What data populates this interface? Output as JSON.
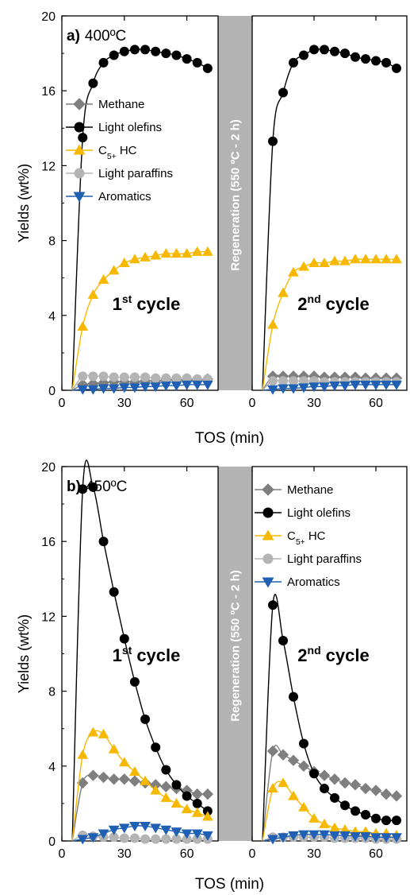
{
  "chart_data": [
    {
      "type": "line",
      "panel_label": "a)",
      "title": "400ºC",
      "xlabel": "TOS (min)",
      "ylabel": "Yields (wt%)",
      "xlim": [
        0,
        75
      ],
      "ylim": [
        0,
        20
      ],
      "x_ticks": [
        "0",
        "30",
        "60"
      ],
      "y_ticks": [
        "0",
        "4",
        "8",
        "12",
        "16",
        "20"
      ],
      "legend_position": "left panel, upper-middle",
      "regeneration_label": "Regeneration (550 ºC - 2 h)",
      "cycles": [
        {
          "label": "1st cycle",
          "series": [
            {
              "name": "Methane",
              "color": "#7f7f7f",
              "marker": "diamond",
              "x": [
                10,
                15,
                20,
                25,
                30,
                35,
                40,
                45,
                50,
                55,
                60,
                65,
                70
              ],
              "values": [
                0.3,
                0.35,
                0.4,
                0.45,
                0.45,
                0.45,
                0.5,
                0.5,
                0.55,
                0.55,
                0.55,
                0.55,
                0.6
              ]
            },
            {
              "name": "Light olefins",
              "color": "#000000",
              "marker": "circle",
              "x": [
                10,
                15,
                20,
                25,
                30,
                35,
                40,
                45,
                50,
                55,
                60,
                65,
                70
              ],
              "values": [
                13.5,
                16.4,
                17.5,
                17.9,
                18.1,
                18.2,
                18.2,
                18.1,
                18.0,
                17.9,
                17.7,
                17.5,
                17.2
              ]
            },
            {
              "name": "C5+ HC",
              "color": "#f6b800",
              "marker": "triangle-up",
              "x": [
                10,
                15,
                20,
                25,
                30,
                35,
                40,
                45,
                50,
                55,
                60,
                65,
                70
              ],
              "values": [
                3.4,
                5.1,
                5.9,
                6.4,
                6.8,
                7.0,
                7.1,
                7.2,
                7.3,
                7.3,
                7.3,
                7.4,
                7.4
              ]
            },
            {
              "name": "Light paraffins",
              "color": "#b4b4b4",
              "marker": "circle",
              "x": [
                10,
                15,
                20,
                25,
                30,
                35,
                40,
                45,
                50,
                55,
                60,
                65,
                70
              ],
              "values": [
                0.75,
                0.75,
                0.75,
                0.7,
                0.7,
                0.7,
                0.7,
                0.65,
                0.65,
                0.65,
                0.65,
                0.6,
                0.6
              ]
            },
            {
              "name": "Aromatics",
              "color": "#1f5fb4",
              "marker": "triangle-down",
              "x": [
                10,
                15,
                20,
                25,
                30,
                35,
                40,
                45,
                50,
                55,
                60,
                65,
                70
              ],
              "values": [
                0.05,
                0.05,
                0.1,
                0.1,
                0.15,
                0.15,
                0.2,
                0.2,
                0.25,
                0.25,
                0.3,
                0.3,
                0.3
              ]
            }
          ]
        },
        {
          "label": "2nd cycle",
          "series": [
            {
              "name": "Methane",
              "color": "#7f7f7f",
              "marker": "diamond",
              "x": [
                10,
                15,
                20,
                25,
                30,
                35,
                40,
                45,
                50,
                55,
                60,
                65,
                70
              ],
              "values": [
                0.75,
                0.75,
                0.75,
                0.75,
                0.75,
                0.7,
                0.7,
                0.7,
                0.7,
                0.65,
                0.65,
                0.65,
                0.65
              ]
            },
            {
              "name": "Light olefins",
              "color": "#000000",
              "marker": "circle",
              "x": [
                10,
                15,
                20,
                25,
                30,
                35,
                40,
                45,
                50,
                55,
                60,
                65,
                70
              ],
              "values": [
                13.3,
                15.9,
                17.5,
                17.9,
                18.2,
                18.2,
                18.1,
                18.0,
                17.8,
                17.7,
                17.6,
                17.5,
                17.2
              ]
            },
            {
              "name": "C5+ HC",
              "color": "#f6b800",
              "marker": "triangle-up",
              "x": [
                10,
                15,
                20,
                25,
                30,
                35,
                40,
                45,
                50,
                55,
                60,
                65,
                70
              ],
              "values": [
                3.5,
                5.2,
                6.3,
                6.6,
                6.8,
                6.8,
                6.9,
                6.9,
                7.0,
                7.0,
                7.0,
                7.0,
                7.0
              ]
            },
            {
              "name": "Light paraffins",
              "color": "#b4b4b4",
              "marker": "circle",
              "x": [
                10,
                15,
                20,
                25,
                30,
                35,
                40,
                45,
                50,
                55,
                60,
                65,
                70
              ],
              "values": [
                0.5,
                0.5,
                0.5,
                0.5,
                0.5,
                0.45,
                0.45,
                0.45,
                0.45,
                0.45,
                0.45,
                0.45,
                0.45
              ]
            },
            {
              "name": "Aromatics",
              "color": "#1f5fb4",
              "marker": "triangle-down",
              "x": [
                10,
                15,
                20,
                25,
                30,
                35,
                40,
                45,
                50,
                55,
                60,
                65,
                70
              ],
              "values": [
                0.05,
                0.1,
                0.1,
                0.15,
                0.2,
                0.2,
                0.25,
                0.25,
                0.3,
                0.3,
                0.3,
                0.3,
                0.3
              ]
            }
          ]
        }
      ]
    },
    {
      "type": "line",
      "panel_label": "b)",
      "title": "450ºC",
      "xlabel": "TOS (min)",
      "ylabel": "Yields (wt%)",
      "xlim": [
        0,
        75
      ],
      "ylim": [
        0,
        20
      ],
      "x_ticks": [
        "0",
        "30",
        "60"
      ],
      "y_ticks": [
        "0",
        "4",
        "8",
        "12",
        "16",
        "20"
      ],
      "legend_position": "right panel, top",
      "regeneration_label": "Regeneration (550 ºC - 2 h)",
      "cycles": [
        {
          "label": "1st cycle",
          "series": [
            {
              "name": "Methane",
              "color": "#7f7f7f",
              "marker": "diamond",
              "x": [
                10,
                15,
                20,
                25,
                30,
                35,
                40,
                45,
                50,
                55,
                60,
                65,
                70
              ],
              "values": [
                3.1,
                3.5,
                3.4,
                3.3,
                3.3,
                3.2,
                3.1,
                3.0,
                2.9,
                2.8,
                2.7,
                2.5,
                2.5
              ]
            },
            {
              "name": "Light olefins",
              "color": "#000000",
              "marker": "circle",
              "x": [
                10,
                15,
                20,
                25,
                30,
                35,
                40,
                45,
                50,
                55,
                60,
                65,
                70
              ],
              "values": [
                18.8,
                18.9,
                16.0,
                13.3,
                10.8,
                8.5,
                6.5,
                5.0,
                3.8,
                3.0,
                2.4,
                2.0,
                1.6
              ]
            },
            {
              "name": "C5+ HC",
              "color": "#f6b800",
              "marker": "triangle-up",
              "x": [
                10,
                15,
                20,
                25,
                30,
                35,
                40,
                45,
                50,
                55,
                60,
                65,
                70
              ],
              "values": [
                4.6,
                5.8,
                5.7,
                4.9,
                4.2,
                3.7,
                3.2,
                2.7,
                2.3,
                2.0,
                1.7,
                1.5,
                1.3
              ]
            },
            {
              "name": "Light paraffins",
              "color": "#b4b4b4",
              "marker": "circle",
              "x": [
                10,
                15,
                20,
                25,
                30,
                35,
                40,
                45,
                50,
                55,
                60,
                65,
                70
              ],
              "values": [
                0.3,
                0.25,
                0.2,
                0.2,
                0.15,
                0.15,
                0.1,
                0.1,
                0.1,
                0.1,
                0.1,
                0.1,
                0.1
              ]
            },
            {
              "name": "Aromatics",
              "color": "#1f5fb4",
              "marker": "triangle-down",
              "x": [
                10,
                15,
                20,
                25,
                30,
                35,
                40,
                45,
                50,
                55,
                60,
                65,
                70
              ],
              "values": [
                0.1,
                0.2,
                0.4,
                0.6,
                0.7,
                0.8,
                0.8,
                0.7,
                0.6,
                0.5,
                0.4,
                0.4,
                0.3
              ]
            }
          ]
        },
        {
          "label": "2nd cycle",
          "series": [
            {
              "name": "Methane",
              "color": "#7f7f7f",
              "marker": "diamond",
              "x": [
                10,
                15,
                20,
                25,
                30,
                35,
                40,
                45,
                50,
                55,
                60,
                65,
                70
              ],
              "values": [
                4.8,
                4.6,
                4.3,
                4.0,
                3.7,
                3.5,
                3.3,
                3.1,
                3.0,
                2.8,
                2.7,
                2.5,
                2.4
              ]
            },
            {
              "name": "Light olefins",
              "color": "#000000",
              "marker": "circle",
              "x": [
                10,
                15,
                20,
                25,
                30,
                35,
                40,
                45,
                50,
                55,
                60,
                65,
                70
              ],
              "values": [
                12.6,
                10.7,
                7.7,
                5.2,
                3.6,
                2.8,
                2.3,
                1.9,
                1.6,
                1.4,
                1.2,
                1.1,
                1.1
              ]
            },
            {
              "name": "C5+ HC",
              "color": "#f6b800",
              "marker": "triangle-up",
              "x": [
                10,
                15,
                20,
                25,
                30,
                35,
                40,
                45,
                50,
                55,
                60,
                65,
                70
              ],
              "values": [
                2.8,
                3.1,
                2.4,
                1.8,
                1.2,
                0.9,
                0.7,
                0.6,
                0.5,
                0.5,
                0.4,
                0.4,
                0.3
              ]
            },
            {
              "name": "Light paraffins",
              "color": "#b4b4b4",
              "marker": "circle",
              "x": [
                10,
                15,
                20,
                25,
                30,
                35,
                40,
                45,
                50,
                55,
                60,
                65,
                70
              ],
              "values": [
                0.2,
                0.2,
                0.2,
                0.2,
                0.2,
                0.2,
                0.15,
                0.15,
                0.15,
                0.15,
                0.1,
                0.1,
                0.1
              ]
            },
            {
              "name": "Aromatics",
              "color": "#1f5fb4",
              "marker": "triangle-down",
              "x": [
                10,
                15,
                20,
                25,
                30,
                35,
                40,
                45,
                50,
                55,
                60,
                65,
                70
              ],
              "values": [
                0.1,
                0.2,
                0.3,
                0.35,
                0.35,
                0.35,
                0.3,
                0.3,
                0.25,
                0.25,
                0.2,
                0.2,
                0.2
              ]
            }
          ]
        }
      ]
    }
  ]
}
